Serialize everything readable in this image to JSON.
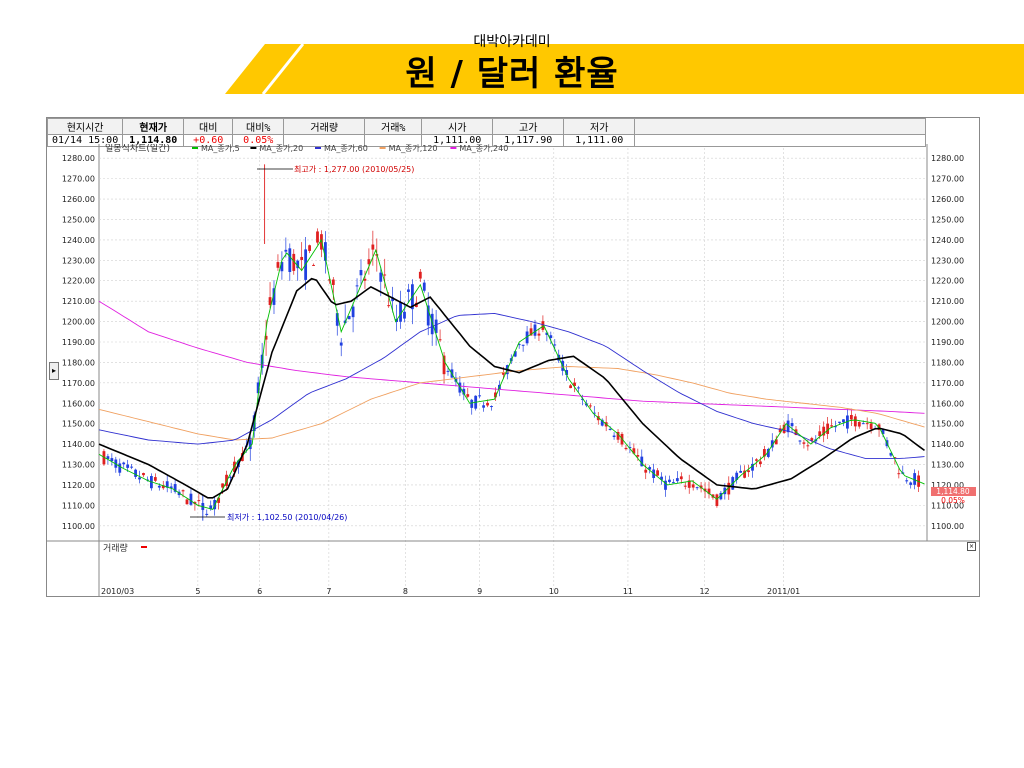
{
  "header": {
    "academy": "대박아카데미",
    "title": "원 / 달러 환율",
    "accent_color": "#FFC800"
  },
  "quote_table": {
    "headers": [
      "현지시간",
      "현재가",
      "대비",
      "대비%",
      "거래량",
      "거래%",
      "시가",
      "고가",
      "저가",
      ""
    ],
    "values": [
      "01/14   15:00",
      "1,114.80",
      "+0.60",
      "0.05%",
      "",
      "",
      "1,111.00",
      "1,117.90",
      "1,111.00",
      ""
    ]
  },
  "chart_data": {
    "type": "candlestick",
    "legend_title": "일봉식차트(일간)",
    "legend": [
      {
        "name": "MA_종가,5",
        "color": "#00c000"
      },
      {
        "name": "MA_종가,20",
        "color": "#000000"
      },
      {
        "name": "MA_종가,60",
        "color": "#3030d0"
      },
      {
        "name": "MA_종가,120",
        "color": "#f0a060"
      },
      {
        "name": "MA_종가,240",
        "color": "#e020e0"
      }
    ],
    "ylim": [
      1095,
      1285
    ],
    "y_ticks": [
      "1280.00",
      "1270.00",
      "1260.00",
      "1250.00",
      "1240.00",
      "1230.00",
      "1220.00",
      "1210.00",
      "1200.00",
      "1190.00",
      "1180.00",
      "1170.00",
      "1160.00",
      "1150.00",
      "1140.00",
      "1130.00",
      "1120.00",
      "1110.00",
      "1100.00"
    ],
    "x_ticks": [
      "2010/03",
      "5",
      "6",
      "7",
      "8",
      "9",
      "10",
      "11",
      "12",
      "2011/01"
    ],
    "annotations": {
      "high": "최고가 : 1,277.00 (2010/05/25)",
      "low": "최저가 : 1,102.50 (2010/04/26)"
    },
    "current_price": "1,114.80",
    "current_change": "0.05%",
    "volume_label": "거래량",
    "series_approx": {
      "ma20": [
        [
          0,
          1140
        ],
        [
          20,
          1130
        ],
        [
          35,
          1120
        ],
        [
          45,
          1113
        ],
        [
          52,
          1118
        ],
        [
          60,
          1140
        ],
        [
          70,
          1185
        ],
        [
          80,
          1215
        ],
        [
          87,
          1222
        ],
        [
          95,
          1208
        ],
        [
          102,
          1210
        ],
        [
          110,
          1217
        ],
        [
          118,
          1212
        ],
        [
          126,
          1207
        ],
        [
          134,
          1212
        ],
        [
          142,
          1200
        ],
        [
          150,
          1188
        ],
        [
          160,
          1178
        ],
        [
          170,
          1175
        ],
        [
          182,
          1181
        ],
        [
          192,
          1183
        ],
        [
          205,
          1172
        ],
        [
          220,
          1150
        ],
        [
          235,
          1133
        ],
        [
          250,
          1120
        ],
        [
          265,
          1118
        ],
        [
          280,
          1123
        ],
        [
          292,
          1132
        ],
        [
          305,
          1143
        ],
        [
          315,
          1148
        ],
        [
          325,
          1145
        ],
        [
          335,
          1136
        ]
      ],
      "ma5": [
        [
          0,
          1135
        ],
        [
          10,
          1128
        ],
        [
          20,
          1122
        ],
        [
          30,
          1118
        ],
        [
          40,
          1110
        ],
        [
          46,
          1108
        ],
        [
          55,
          1130
        ],
        [
          62,
          1140
        ],
        [
          68,
          1200
        ],
        [
          75,
          1235
        ],
        [
          82,
          1225
        ],
        [
          90,
          1240
        ],
        [
          98,
          1195
        ],
        [
          105,
          1215
        ],
        [
          112,
          1235
        ],
        [
          120,
          1200
        ],
        [
          130,
          1218
        ],
        [
          140,
          1180
        ],
        [
          150,
          1160
        ],
        [
          160,
          1162
        ],
        [
          170,
          1190
        ],
        [
          180,
          1198
        ],
        [
          190,
          1172
        ],
        [
          200,
          1155
        ],
        [
          210,
          1145
        ],
        [
          220,
          1130
        ],
        [
          230,
          1120
        ],
        [
          240,
          1122
        ],
        [
          250,
          1113
        ],
        [
          260,
          1125
        ],
        [
          270,
          1135
        ],
        [
          278,
          1150
        ],
        [
          288,
          1140
        ],
        [
          296,
          1148
        ],
        [
          305,
          1152
        ],
        [
          315,
          1150
        ],
        [
          325,
          1125
        ],
        [
          335,
          1120
        ]
      ],
      "ma60": [
        [
          0,
          1147
        ],
        [
          20,
          1142
        ],
        [
          40,
          1140
        ],
        [
          55,
          1142
        ],
        [
          70,
          1152
        ],
        [
          85,
          1165
        ],
        [
          100,
          1172
        ],
        [
          115,
          1182
        ],
        [
          130,
          1195
        ],
        [
          145,
          1203
        ],
        [
          160,
          1204
        ],
        [
          175,
          1200
        ],
        [
          190,
          1195
        ],
        [
          205,
          1188
        ],
        [
          220,
          1176
        ],
        [
          235,
          1165
        ],
        [
          250,
          1156
        ],
        [
          265,
          1150
        ],
        [
          280,
          1146
        ],
        [
          295,
          1138
        ],
        [
          310,
          1133
        ],
        [
          325,
          1133
        ],
        [
          335,
          1134
        ]
      ],
      "ma120": [
        [
          0,
          1157
        ],
        [
          20,
          1151
        ],
        [
          40,
          1145
        ],
        [
          55,
          1142
        ],
        [
          70,
          1143
        ],
        [
          90,
          1150
        ],
        [
          110,
          1162
        ],
        [
          130,
          1170
        ],
        [
          150,
          1173
        ],
        [
          170,
          1176
        ],
        [
          190,
          1178
        ],
        [
          210,
          1177
        ],
        [
          225,
          1174
        ],
        [
          240,
          1170
        ],
        [
          255,
          1165
        ],
        [
          270,
          1162
        ],
        [
          285,
          1160
        ],
        [
          300,
          1158
        ],
        [
          315,
          1155
        ],
        [
          335,
          1148
        ]
      ],
      "ma240": [
        [
          0,
          1210
        ],
        [
          20,
          1195
        ],
        [
          40,
          1187
        ],
        [
          60,
          1180
        ],
        [
          80,
          1176
        ],
        [
          100,
          1173
        ],
        [
          120,
          1171
        ],
        [
          140,
          1169
        ],
        [
          160,
          1167
        ],
        [
          180,
          1165
        ],
        [
          200,
          1163
        ],
        [
          220,
          1161
        ],
        [
          240,
          1160
        ],
        [
          260,
          1159
        ],
        [
          280,
          1158
        ],
        [
          300,
          1157
        ],
        [
          320,
          1156
        ],
        [
          335,
          1155
        ]
      ]
    }
  }
}
